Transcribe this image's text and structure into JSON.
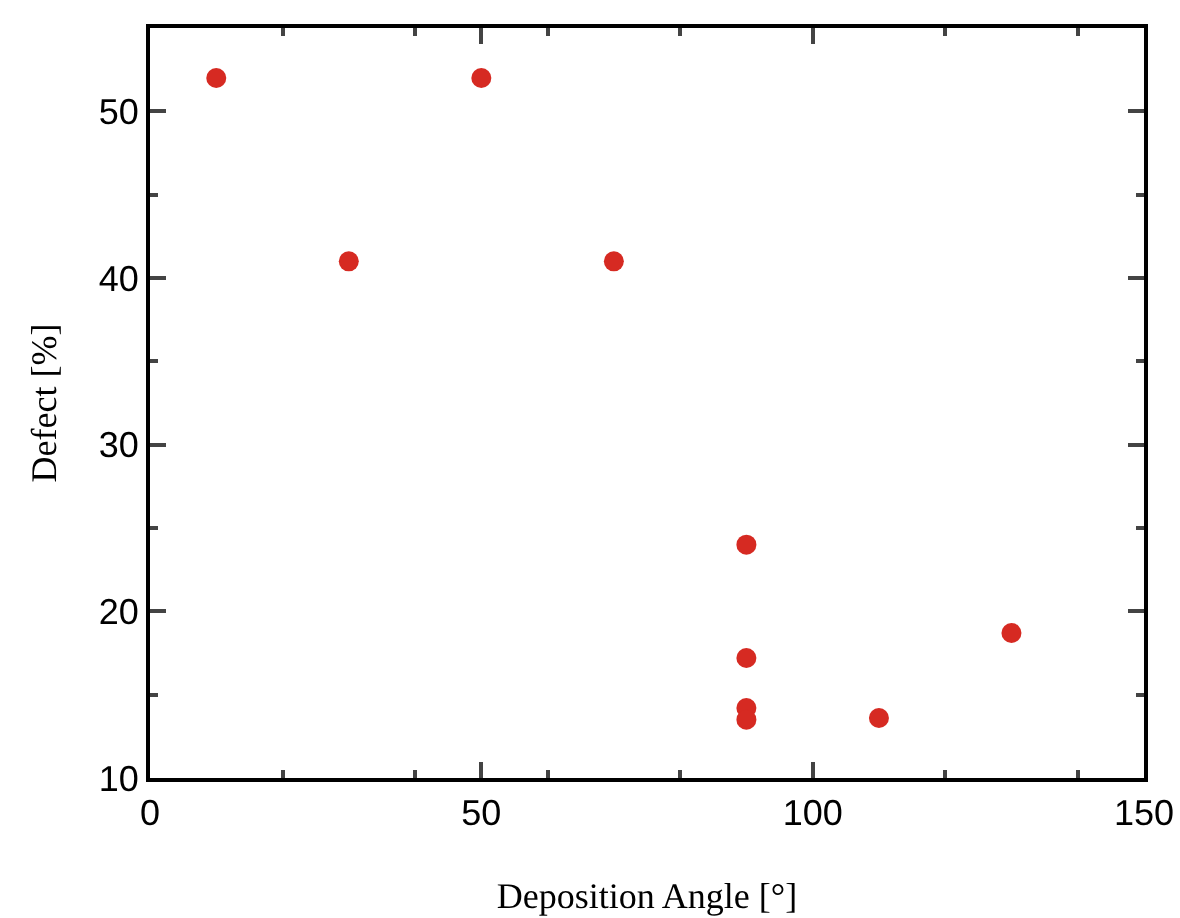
{
  "chart_data": {
    "type": "scatter",
    "xlabel": "Deposition Angle [°]",
    "ylabel": "Defect [%]",
    "x": [
      10,
      30,
      50,
      70,
      90,
      90,
      90,
      90,
      110,
      130
    ],
    "series": [
      {
        "color": "#d62a22",
        "values": [
          52,
          41,
          52,
          41,
          24,
          17.2,
          14.2,
          13.5,
          13.6,
          18.7
        ]
      }
    ],
    "xlim": [
      0,
      150
    ],
    "xticks": [
      0,
      50,
      100,
      150
    ],
    "ylim": [
      10,
      55
    ],
    "yticks": [
      10,
      20,
      30,
      40,
      50
    ],
    "marker": "circle"
  }
}
